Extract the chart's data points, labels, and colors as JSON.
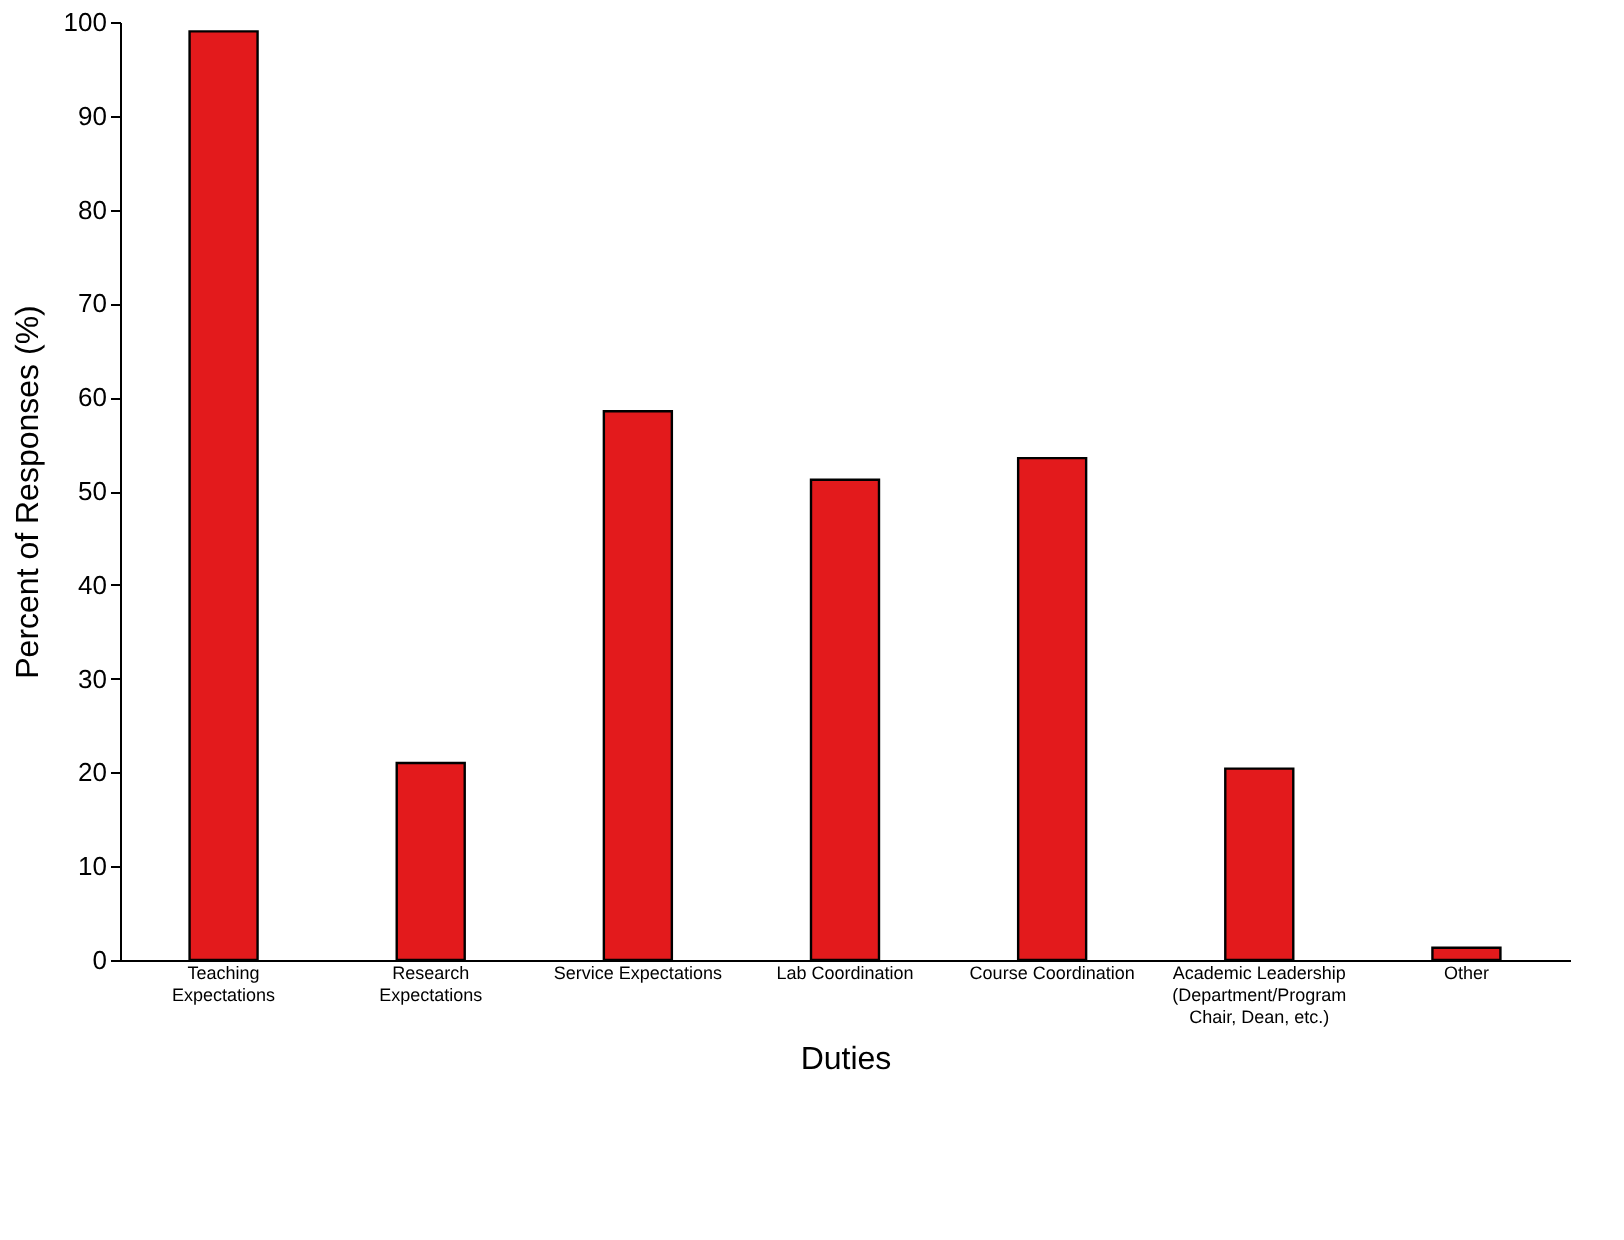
{
  "chart_data": {
    "type": "bar",
    "xlabel": "Duties",
    "ylabel": "Percent of Responses (%)",
    "categories": [
      "Teaching Expectations",
      "Research Expectations",
      "Service Expectations",
      "Lab Coordination",
      "Course Coordination",
      "Academic Leadership (Department/Program Chair, Dean, etc.)",
      "Other"
    ],
    "values": [
      99,
      21,
      58.5,
      51.2,
      53.5,
      20.4,
      1.3
    ],
    "color": "#e31a1c",
    "ylim": [
      0,
      100
    ],
    "yticks": [
      0,
      10,
      20,
      30,
      40,
      50,
      60,
      70,
      80,
      90,
      100
    ],
    "grid": false
  }
}
